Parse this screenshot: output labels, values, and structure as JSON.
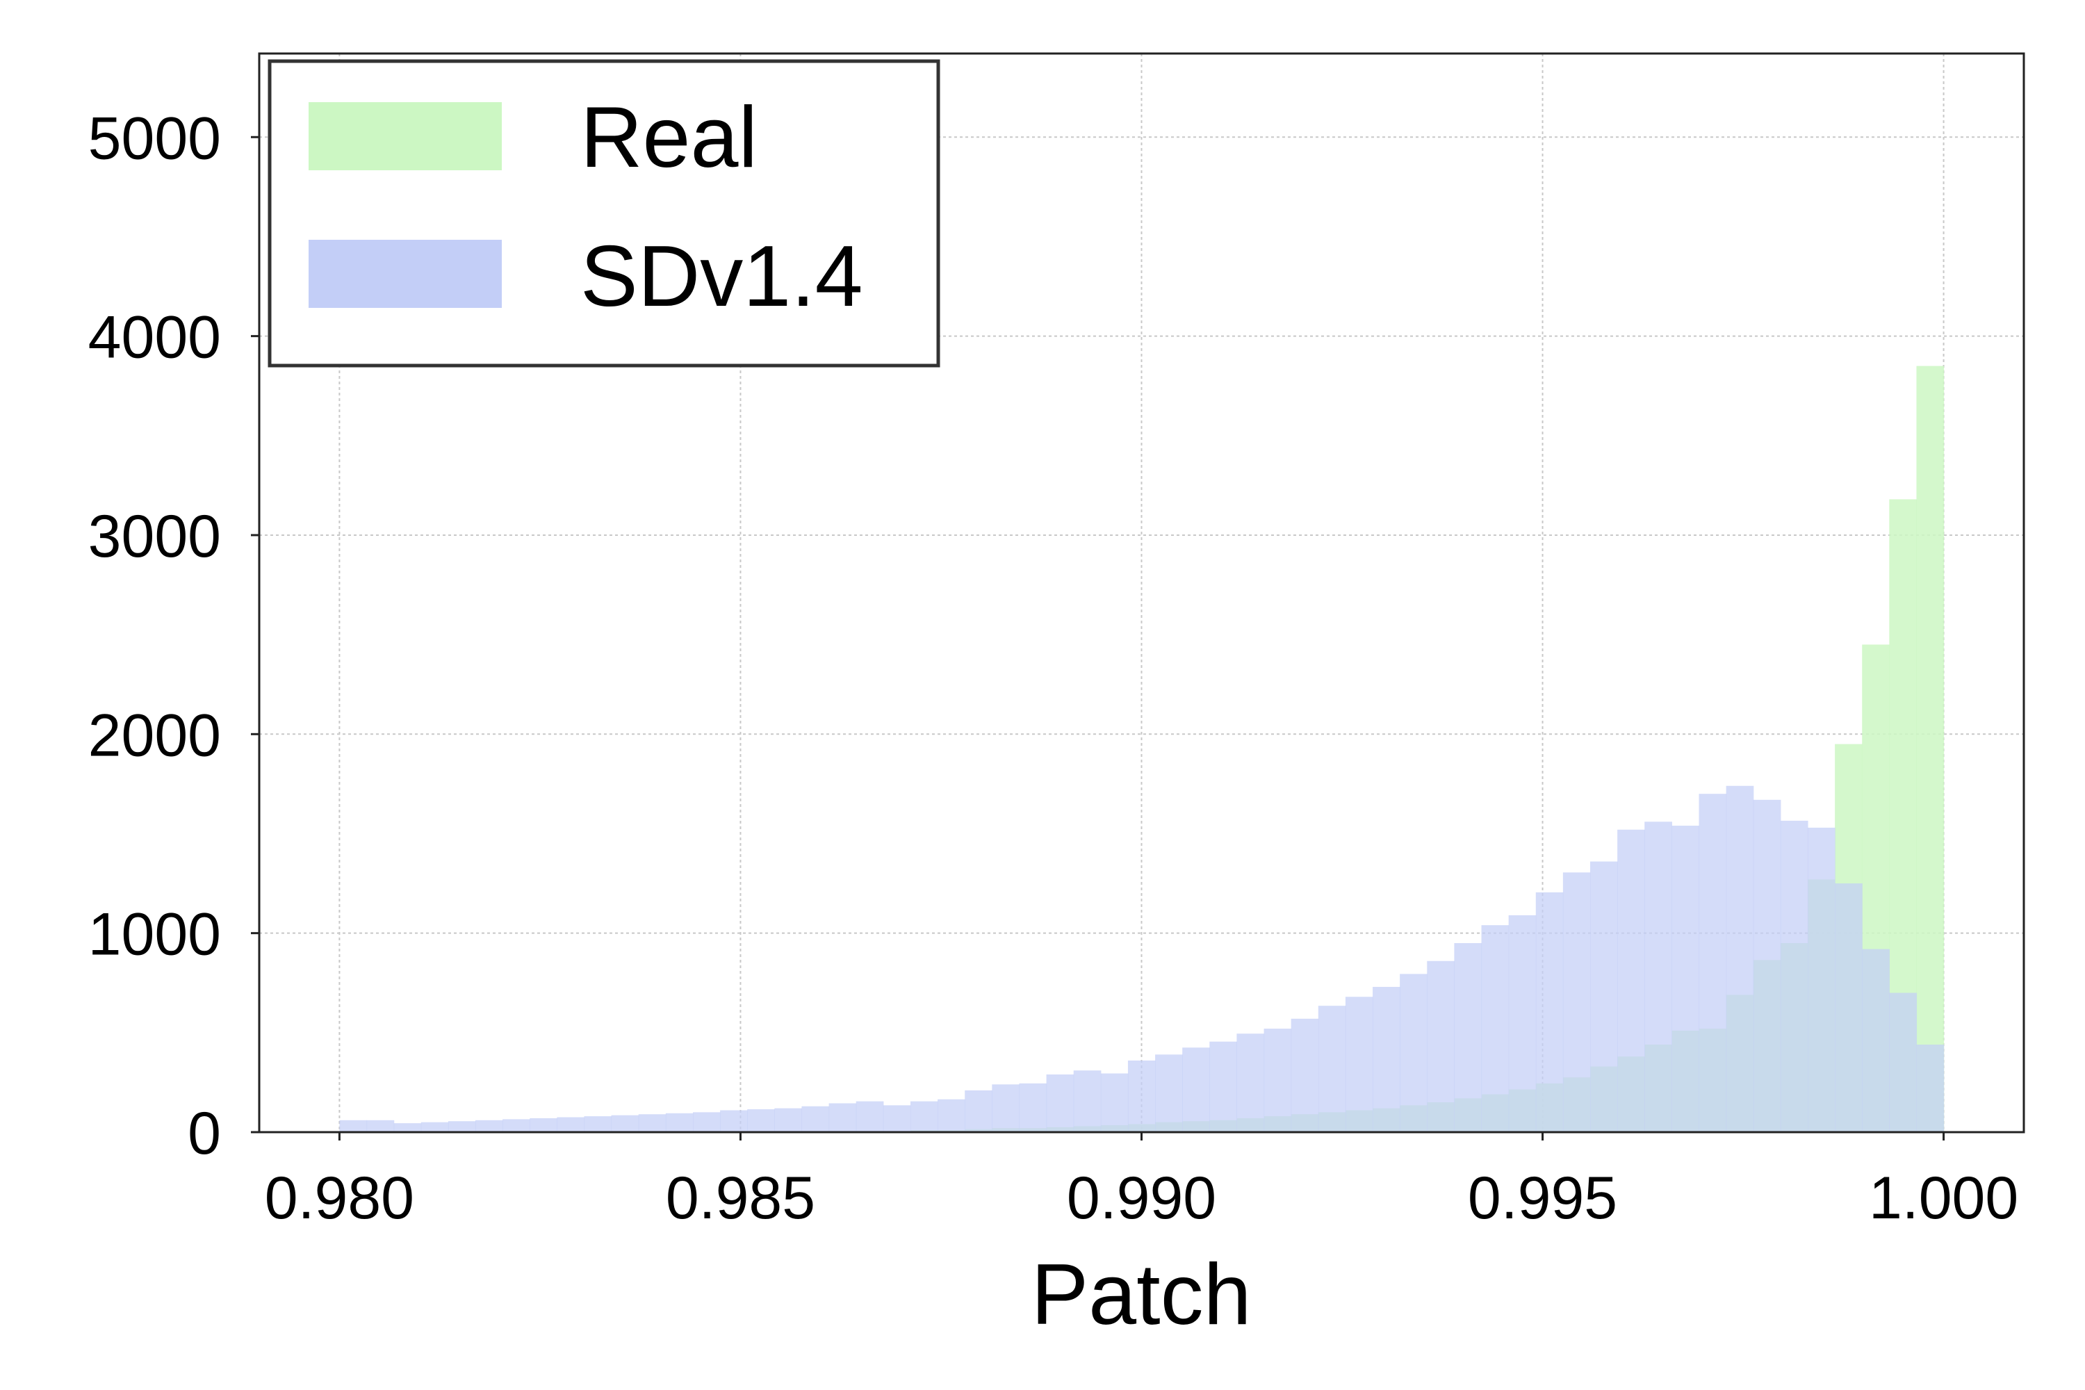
{
  "chart_data": {
    "type": "bar",
    "subtype": "overlapping-histogram",
    "xlabel": "Patch",
    "ylabel": "",
    "xlim": [
      0.979,
      1.001
    ],
    "ylim": [
      0,
      5420
    ],
    "xticks": [
      0.98,
      0.985,
      0.99,
      0.995,
      1.0
    ],
    "xtick_labels": [
      "0.980",
      "0.985",
      "0.990",
      "0.995",
      "1.000"
    ],
    "yticks": [
      0,
      1000,
      2000,
      3000,
      4000,
      5000
    ],
    "ytick_labels": [
      "0",
      "1000",
      "2000",
      "3000",
      "4000",
      "5000"
    ],
    "grid": true,
    "legend_position": "top-left",
    "bin_range": [
      0.98,
      1.0
    ],
    "bin_count": 59,
    "series": [
      {
        "name": "Real",
        "color": "#ccf7c3",
        "values": [
          0,
          0,
          0,
          0,
          0,
          0,
          0,
          0,
          0,
          0,
          0,
          0,
          0,
          0,
          0,
          0,
          0,
          0,
          0,
          5,
          5,
          10,
          10,
          15,
          20,
          20,
          25,
          30,
          35,
          40,
          50,
          55,
          60,
          70,
          80,
          90,
          100,
          110,
          120,
          135,
          150,
          170,
          190,
          215,
          245,
          275,
          330,
          380,
          440,
          510,
          520,
          690,
          865,
          950,
          1270,
          1950,
          2450,
          3180,
          3850
        ]
      },
      {
        "name": "SDv1.4",
        "color": "#c3cef7",
        "values": [
          60,
          60,
          45,
          50,
          55,
          60,
          65,
          70,
          75,
          80,
          85,
          90,
          95,
          100,
          110,
          115,
          120,
          130,
          145,
          155,
          135,
          155,
          165,
          210,
          240,
          245,
          290,
          310,
          295,
          360,
          390,
          425,
          455,
          495,
          520,
          570,
          635,
          680,
          730,
          795,
          860,
          950,
          1040,
          1090,
          1205,
          1305,
          1360,
          1520,
          1560,
          1540,
          1700,
          1740,
          1670,
          1565,
          1530,
          1250,
          920,
          700,
          440
        ]
      }
    ]
  }
}
